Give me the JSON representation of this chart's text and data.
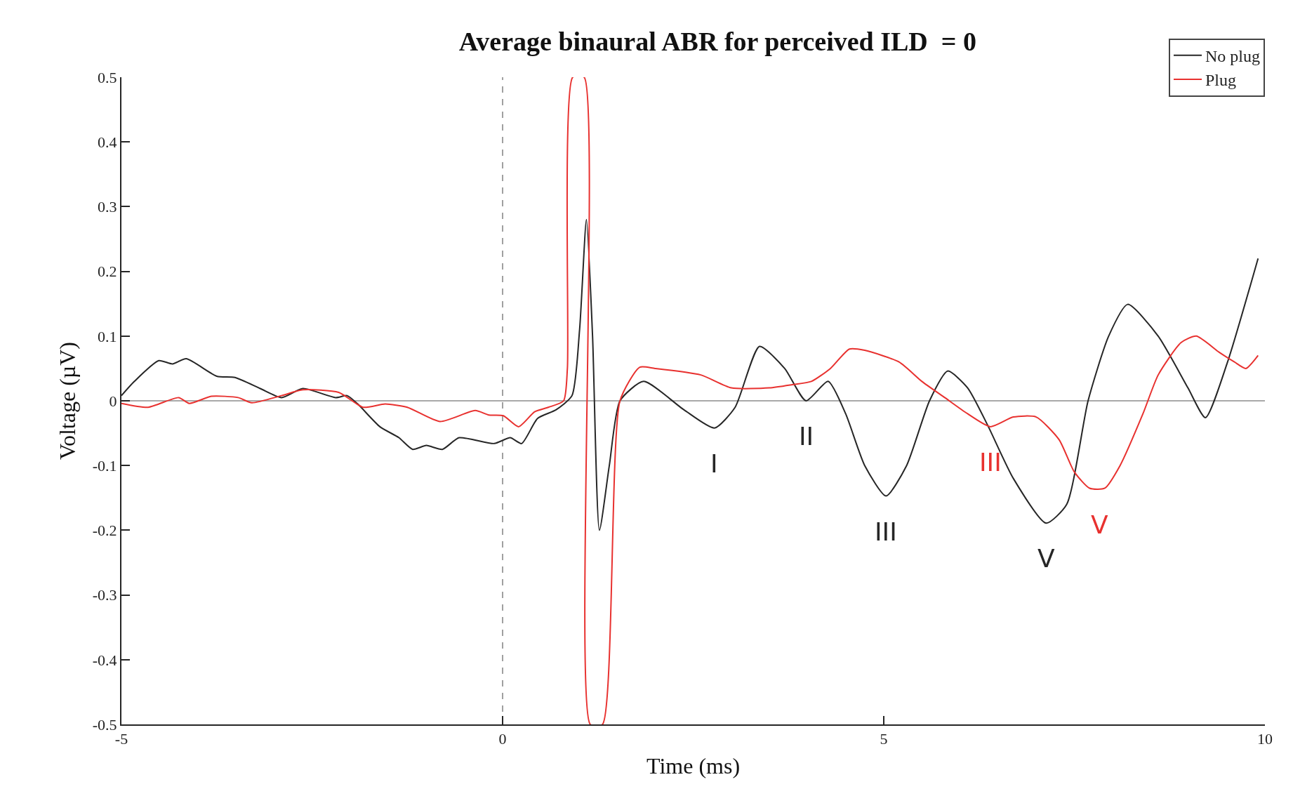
{
  "chart_data": {
    "type": "line",
    "title": "Average binaural ABR for perceived ILD  = 0",
    "xlabel": "Time (ms)",
    "ylabel": "Voltage (µV)",
    "xlim": [
      -5,
      10
    ],
    "xticks": [
      -5,
      0,
      5,
      10
    ],
    "ylim": [
      -0.5,
      0.5
    ],
    "yticks": [
      -0.5,
      -0.4,
      -0.3,
      -0.2,
      -0.1,
      0,
      0.1,
      0.2,
      0.3,
      0.4,
      0.5
    ],
    "grid": false,
    "legend": "top right",
    "marker": "none",
    "line_style": "solid",
    "series": [
      {
        "name": "No plug",
        "color": "#262626",
        "x": [
          -5,
          -4.83,
          -4.51,
          -4.33,
          -4.15,
          -3.75,
          -3.51,
          -3.18,
          -2.9,
          -2.62,
          -2.19,
          -2.04,
          -1.9,
          -1.61,
          -1.36,
          -1.18,
          -1.0,
          -0.79,
          -0.57,
          -0.11,
          0.1,
          0.25,
          0.46,
          0.7,
          0.91,
          1.01,
          1.1,
          1.18,
          1.27,
          1.4,
          1.54,
          1.85,
          2.38,
          2.78,
          3.05,
          3.37,
          3.7,
          3.98,
          4.27,
          4.5,
          4.75,
          5.03,
          5.3,
          5.6,
          5.84,
          6.1,
          6.36,
          6.7,
          7.13,
          7.4,
          7.68,
          7.95,
          8.2,
          8.6,
          8.99,
          9.22,
          9.51,
          9.91
        ],
        "values": [
          0.008,
          0.03,
          0.062,
          0.057,
          0.065,
          0.038,
          0.036,
          0.019,
          0.005,
          0.019,
          0.005,
          0.008,
          -0.005,
          -0.04,
          -0.057,
          -0.075,
          -0.069,
          -0.075,
          -0.057,
          -0.066,
          -0.057,
          -0.066,
          -0.027,
          -0.014,
          0.008,
          0.11,
          0.28,
          0.1,
          -0.2,
          -0.1,
          0.0,
          0.03,
          -0.014,
          -0.042,
          -0.01,
          0.084,
          0.05,
          0.0,
          0.03,
          -0.02,
          -0.1,
          -0.147,
          -0.1,
          0.0,
          0.046,
          0.02,
          -0.037,
          -0.12,
          -0.189,
          -0.16,
          0.0,
          0.1,
          0.149,
          0.1,
          0.02,
          -0.026,
          0.06,
          0.22
        ]
      },
      {
        "name": "Plug",
        "color": "#e8312f",
        "x": [
          -5,
          -4.65,
          -4.25,
          -4.11,
          -3.82,
          -3.47,
          -3.29,
          -2.9,
          -2.62,
          -2.15,
          -1.83,
          -1.54,
          -1.25,
          -0.82,
          -0.36,
          -0.18,
          0.01,
          0.21,
          0.42,
          0.6,
          0.8,
          0.85,
          0.92,
          1.07,
          1.15,
          1.31,
          1.54,
          1.8,
          2.0,
          2.6,
          3.0,
          3.5,
          3.8,
          4.05,
          4.3,
          4.55,
          4.75,
          5.2,
          5.5,
          5.8,
          6.1,
          6.4,
          6.7,
          7.0,
          7.3,
          7.5,
          7.7,
          7.9,
          8.1,
          8.4,
          8.6,
          8.9,
          9.1,
          9.4,
          9.6,
          9.75,
          9.91
        ],
        "values": [
          -0.004,
          -0.01,
          0.005,
          -0.004,
          0.007,
          0.005,
          -0.003,
          0.008,
          0.017,
          0.013,
          -0.01,
          -0.005,
          -0.01,
          -0.032,
          -0.015,
          -0.022,
          -0.023,
          -0.04,
          -0.017,
          -0.01,
          0.0,
          0.05,
          0.5,
          0.5,
          -0.5,
          -0.5,
          0.0,
          0.052,
          0.05,
          0.04,
          0.02,
          0.02,
          0.025,
          0.03,
          0.05,
          0.08,
          0.078,
          0.06,
          0.03,
          0.005,
          -0.02,
          -0.04,
          -0.025,
          -0.025,
          -0.06,
          -0.11,
          -0.135,
          -0.135,
          -0.1,
          -0.02,
          0.04,
          0.09,
          0.1,
          0.075,
          0.06,
          0.05,
          0.07
        ]
      }
    ],
    "ref_lines": [
      {
        "axis": "x",
        "value": 0,
        "color": "#a0a0a0",
        "line_style": "dashed"
      },
      {
        "axis": "y",
        "value": 0,
        "color": "#555555",
        "line_style": "solid"
      }
    ],
    "annotations": [
      {
        "text": "I",
        "x": 2.78,
        "y": -0.042
      },
      {
        "text": "II",
        "x": 3.98,
        "y": 0.0
      },
      {
        "text": "III",
        "x": 5.03,
        "y": -0.147
      },
      {
        "text": "III",
        "x": 6.4,
        "y": -0.04
      },
      {
        "text": "V",
        "x": 7.13,
        "y": -0.189
      },
      {
        "text": "V",
        "x": 7.83,
        "y": -0.137
      }
    ]
  }
}
